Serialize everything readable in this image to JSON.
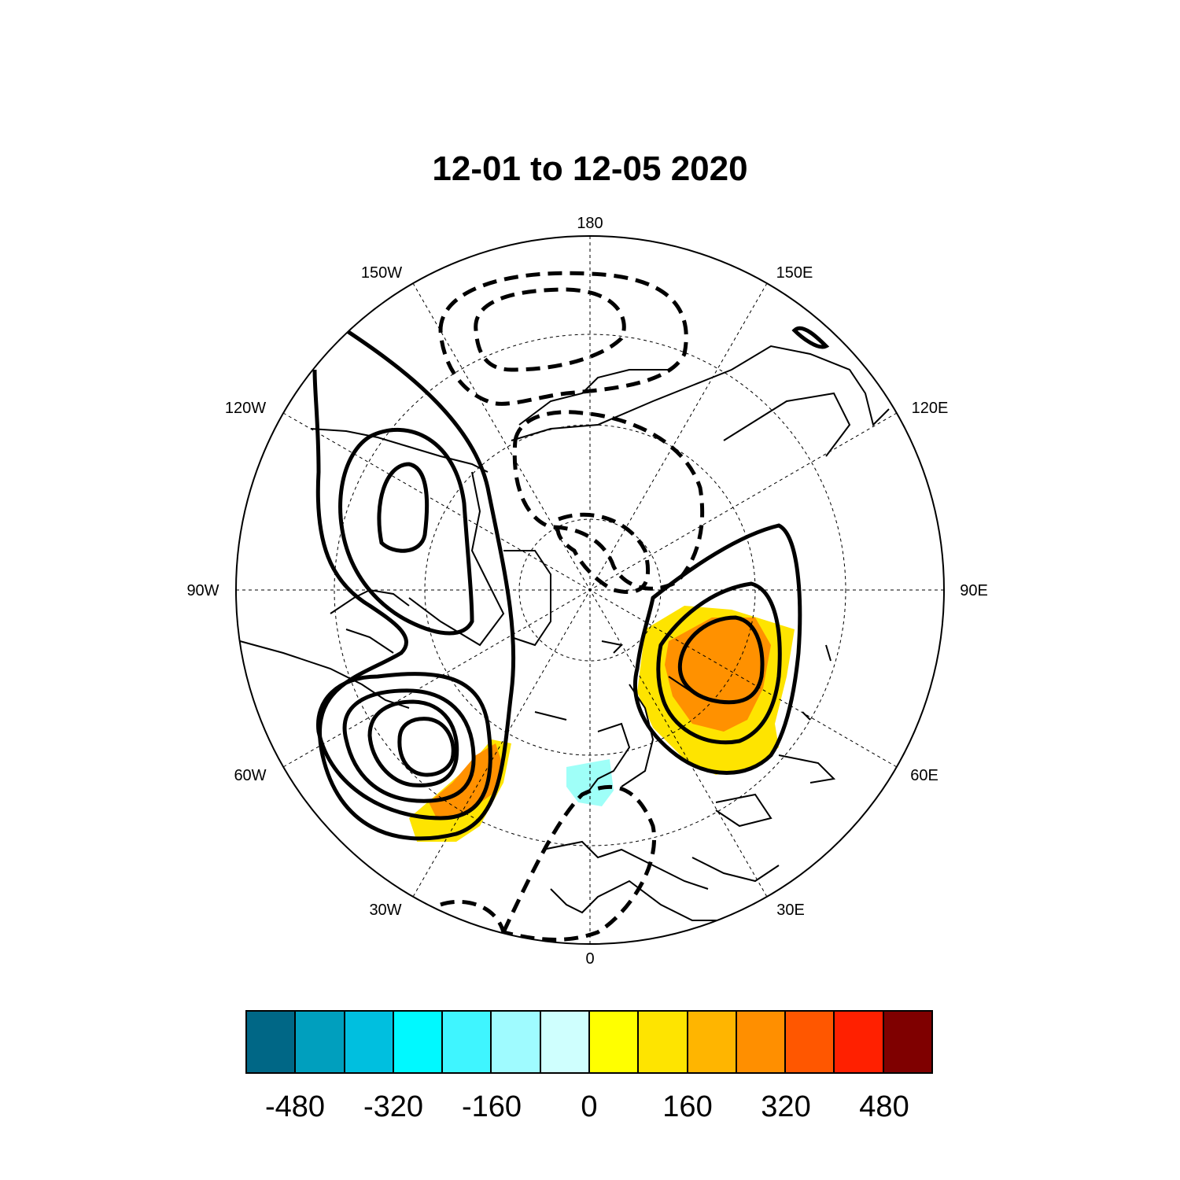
{
  "title": "12-01 to 12-05 2020",
  "map": {
    "projection": "north polar stereographic",
    "longitude_labels": [
      "180",
      "150E",
      "120E",
      "90E",
      "60E",
      "30E",
      "0",
      "30W",
      "60W",
      "90W",
      "120W",
      "150W"
    ],
    "contour_style": {
      "positive": "solid",
      "negative": "dashed"
    },
    "shading_colors": {
      "positive_low": "#fee400",
      "positive_mid": "#ff9100",
      "negative_low": "#9ffff8"
    }
  },
  "colorbar": {
    "colors": [
      "#006786",
      "#009fbe",
      "#00bfdf",
      "#00f9ff",
      "#3ff5ff",
      "#9ffbff",
      "#cffffe",
      "#ffff00",
      "#fee400",
      "#ffb500",
      "#ff8f00",
      "#ff5700",
      "#ff2000",
      "#7f0000"
    ],
    "tick_labels": [
      "-480",
      "-320",
      "-160",
      "0",
      "160",
      "320",
      "480"
    ]
  }
}
